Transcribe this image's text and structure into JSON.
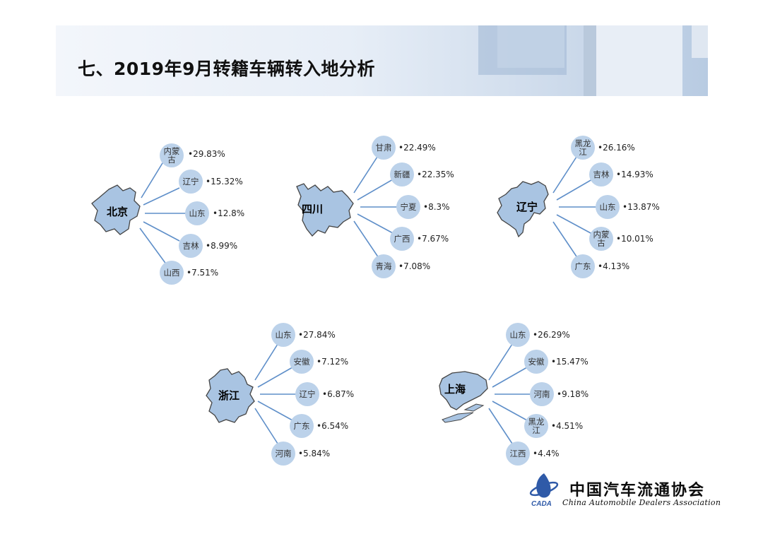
{
  "title": "七、2019年9月转籍车辆转入地分析",
  "colors": {
    "bubble": "#bcd2ea",
    "map_fill": "#a9c4e2",
    "map_stroke": "#444444",
    "ray": "#5f8fc9"
  },
  "groups": [
    {
      "name": "北京",
      "targets": [
        {
          "label": "内蒙古",
          "value": "29.83%"
        },
        {
          "label": "辽宁",
          "value": "15.32%"
        },
        {
          "label": "山东",
          "value": "12.8%"
        },
        {
          "label": "吉林",
          "value": "8.99%"
        },
        {
          "label": "山西",
          "value": "7.51%"
        }
      ]
    },
    {
      "name": "四川",
      "targets": [
        {
          "label": "甘肃",
          "value": "22.49%"
        },
        {
          "label": "新疆",
          "value": "22.35%"
        },
        {
          "label": "宁夏",
          "value": "8.3%"
        },
        {
          "label": "广西",
          "value": "7.67%"
        },
        {
          "label": "青海",
          "value": "7.08%"
        }
      ]
    },
    {
      "name": "辽宁",
      "targets": [
        {
          "label": "黑龙江",
          "value": "26.16%"
        },
        {
          "label": "吉林",
          "value": "14.93%"
        },
        {
          "label": "山东",
          "value": "13.87%"
        },
        {
          "label": "内蒙古",
          "value": "10.01%"
        },
        {
          "label": "广东",
          "value": "4.13%"
        }
      ]
    },
    {
      "name": "浙江",
      "targets": [
        {
          "label": "山东",
          "value": "27.84%"
        },
        {
          "label": "安徽",
          "value": "7.12%"
        },
        {
          "label": "辽宁",
          "value": "6.87%"
        },
        {
          "label": "广东",
          "value": "6.54%"
        },
        {
          "label": "河南",
          "value": "5.84%"
        }
      ]
    },
    {
      "name": "上海",
      "targets": [
        {
          "label": "山东",
          "value": "26.29%"
        },
        {
          "label": "安徽",
          "value": "15.47%"
        },
        {
          "label": "河南",
          "value": "9.18%"
        },
        {
          "label": "黑龙江",
          "value": "4.51%"
        },
        {
          "label": "江西",
          "value": "4.4%"
        }
      ]
    }
  ],
  "logo": {
    "cn": "中国汽车流通协会",
    "en": "China Automobile Dealers Association",
    "mark": "CADA"
  }
}
